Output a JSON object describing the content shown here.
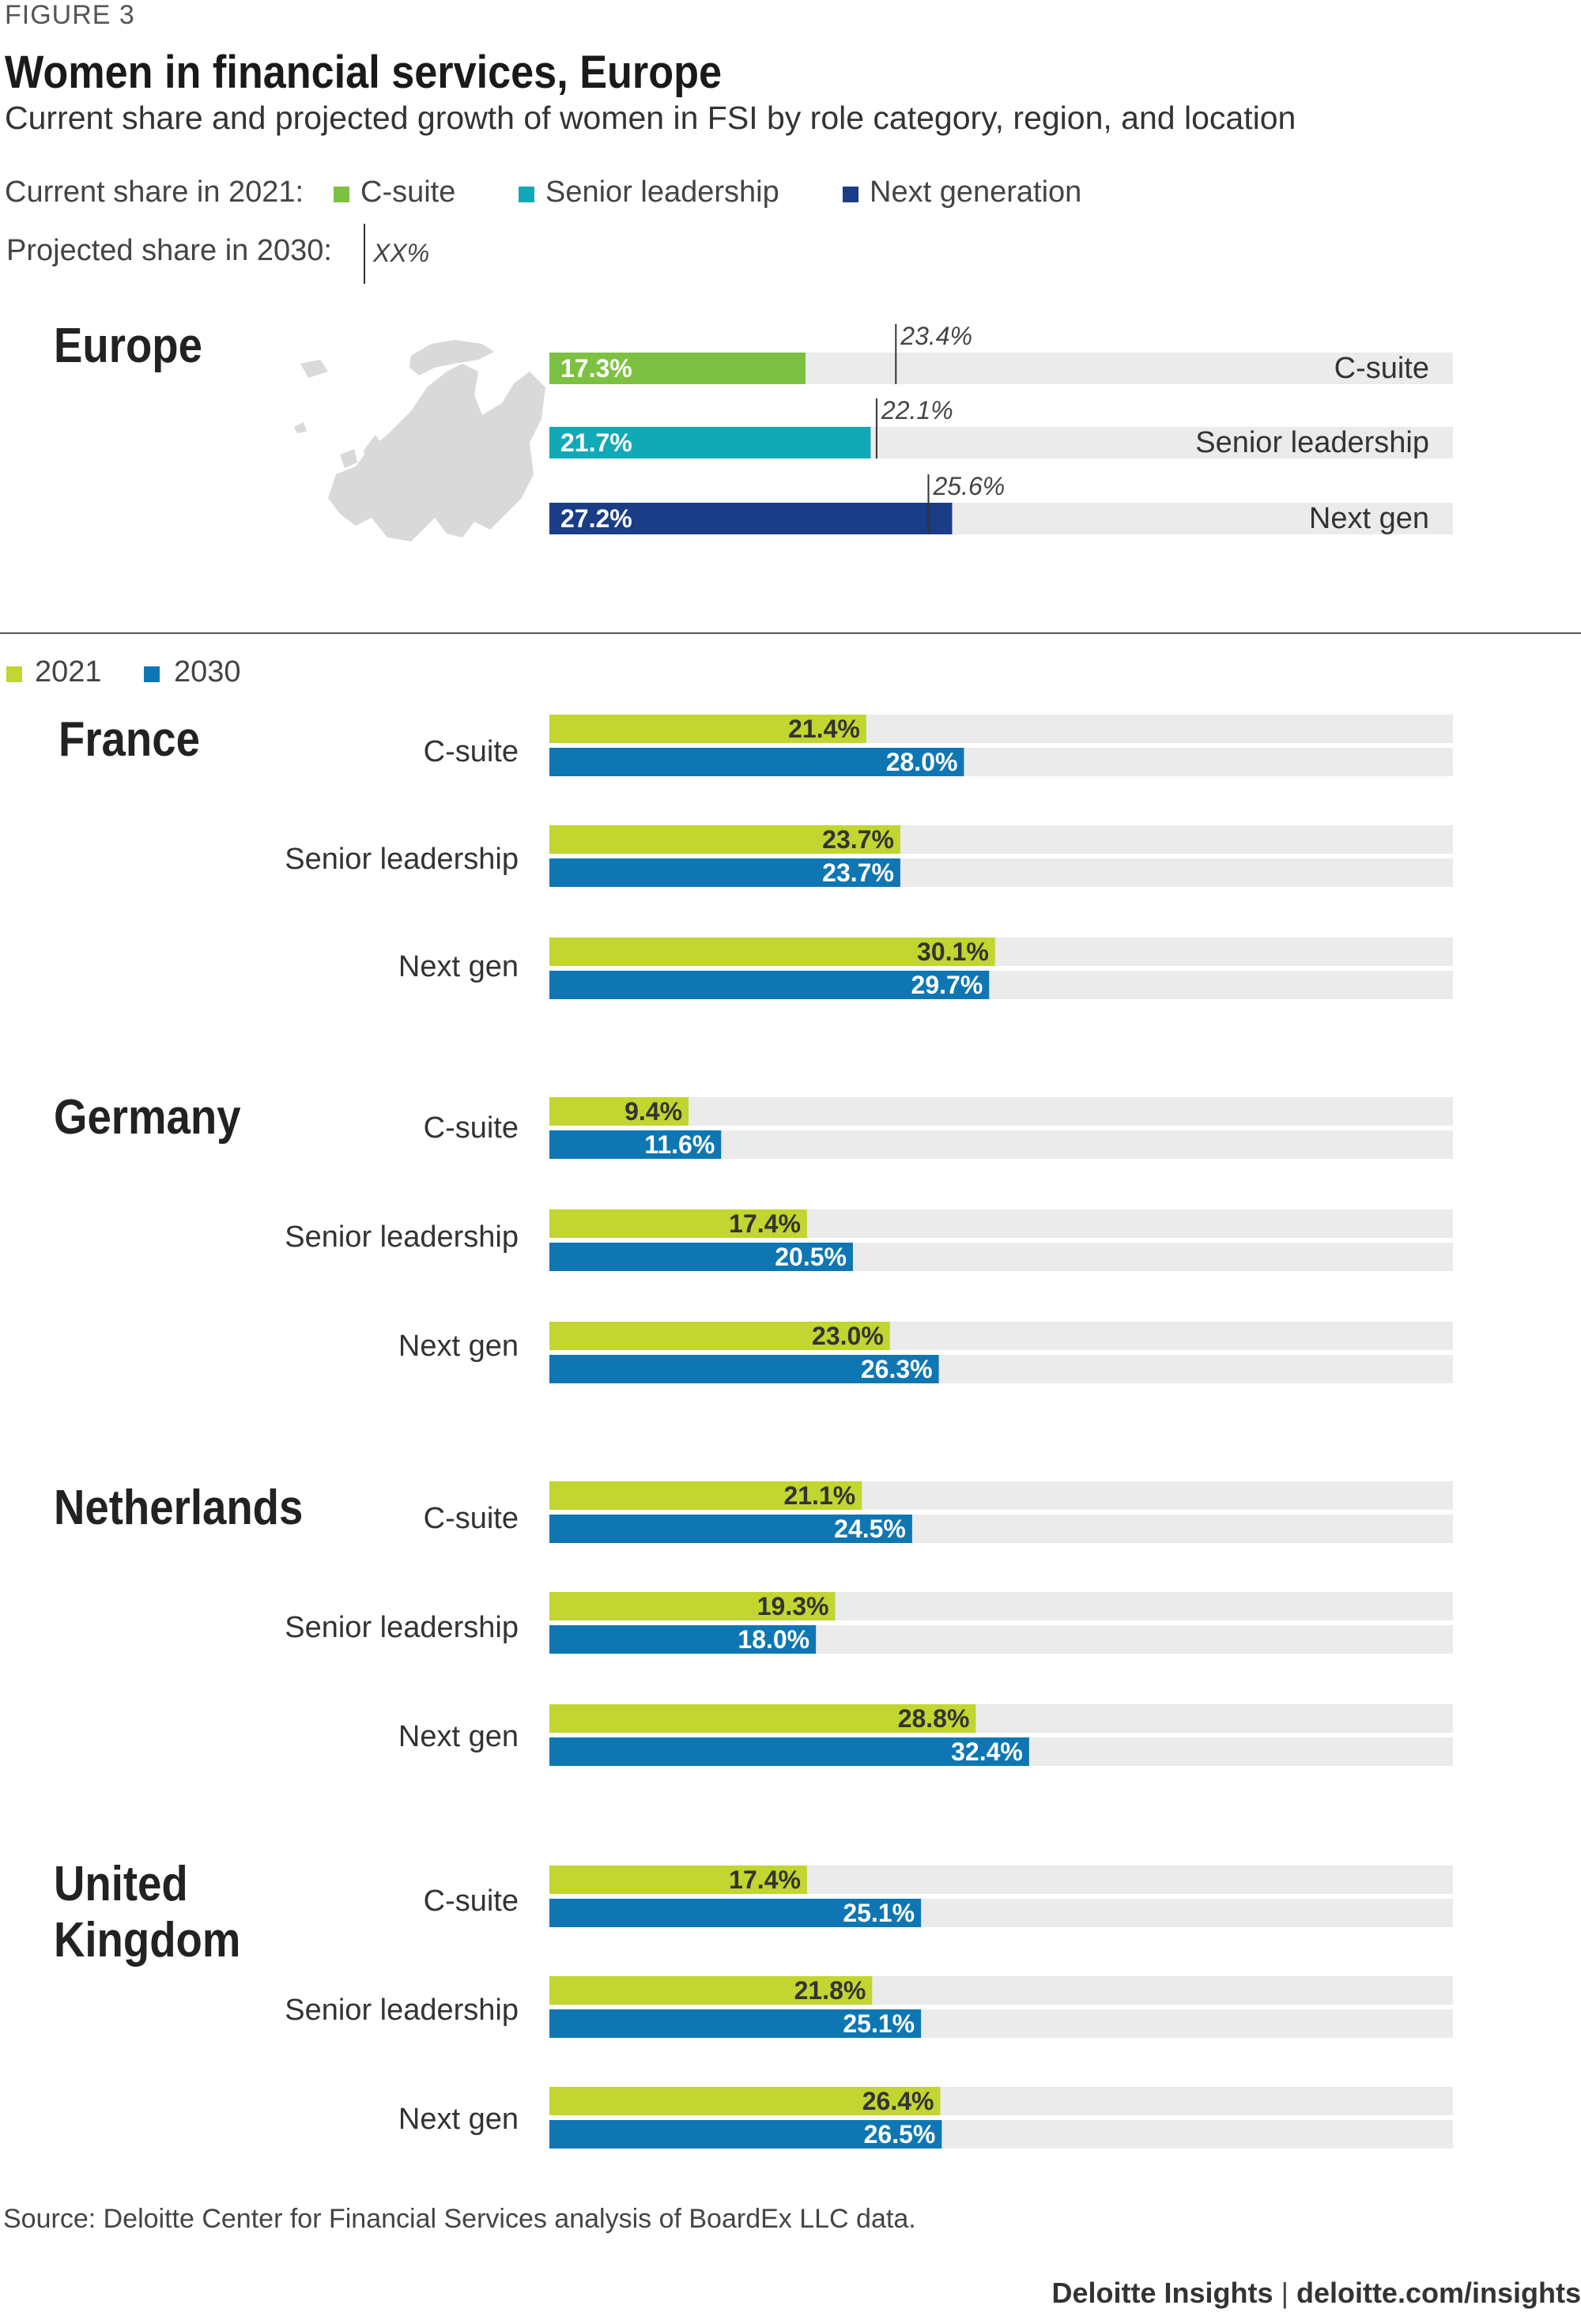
{
  "figure_label": "FIGURE 3",
  "title": "Women in financial services, Europe",
  "subtitle": "Current share and projected growth of women in FSI by role category, region, and location",
  "legend_top": {
    "current_label": "Current share in 2021:",
    "projected_label": "Projected share in 2030:",
    "projected_marker": "XX%",
    "items": [
      {
        "label": "C-suite",
        "color": "#7DC142"
      },
      {
        "label": "Senior leadership",
        "color": "#12A9B7"
      },
      {
        "label": "Next generation",
        "color": "#1B3C86"
      }
    ]
  },
  "legend_countries": {
    "items": [
      {
        "label": "2021",
        "color": "#C2D530"
      },
      {
        "label": "2030",
        "color": "#0E77B3"
      }
    ]
  },
  "source": "Source: Deloitte Center for Financial Services analysis of BoardEx LLC data.",
  "footer": {
    "brand": "Deloitte Insights",
    "separator": "|",
    "url": "deloitte.com/insights"
  },
  "chart_data": [
    {
      "type": "bar",
      "region": "Europe",
      "categories": [
        "C-suite",
        "Senior leadership",
        "Next gen"
      ],
      "current_2021": [
        17.3,
        21.7,
        27.2
      ],
      "current_labels": [
        "17.3%",
        "21.7%",
        "27.2%"
      ],
      "projected_2030": [
        23.4,
        22.1,
        25.6
      ],
      "projected_labels": [
        "23.4%",
        "22.1%",
        "25.6%"
      ],
      "colors": [
        "#7DC142",
        "#12A9B7",
        "#1B3C86"
      ],
      "xlim": [
        0,
        100
      ]
    },
    {
      "type": "bar",
      "region": "France",
      "categories": [
        "C-suite",
        "Senior leadership",
        "Next gen"
      ],
      "series": [
        {
          "name": "2021",
          "values": [
            21.4,
            23.7,
            30.1
          ],
          "labels": [
            "21.4%",
            "23.7%",
            "30.1%"
          ]
        },
        {
          "name": "2030",
          "values": [
            28.0,
            23.7,
            29.7
          ],
          "labels": [
            "28.0%",
            "23.7%",
            "29.7%"
          ]
        }
      ],
      "xlim": [
        0,
        100
      ]
    },
    {
      "type": "bar",
      "region": "Germany",
      "categories": [
        "C-suite",
        "Senior leadership",
        "Next gen"
      ],
      "series": [
        {
          "name": "2021",
          "values": [
            9.4,
            17.4,
            23.0
          ],
          "labels": [
            "9.4%",
            "17.4%",
            "23.0%"
          ]
        },
        {
          "name": "2030",
          "values": [
            11.6,
            20.5,
            26.3
          ],
          "labels": [
            "11.6%",
            "20.5%",
            "26.3%"
          ]
        }
      ],
      "xlim": [
        0,
        100
      ]
    },
    {
      "type": "bar",
      "region": "Netherlands",
      "categories": [
        "C-suite",
        "Senior leadership",
        "Next gen"
      ],
      "series": [
        {
          "name": "2021",
          "values": [
            21.1,
            19.3,
            28.8
          ],
          "labels": [
            "21.1%",
            "19.3%",
            "28.8%"
          ]
        },
        {
          "name": "2030",
          "values": [
            24.5,
            18.0,
            32.4
          ],
          "labels": [
            "24.5%",
            "18.0%",
            "32.4%"
          ]
        }
      ],
      "xlim": [
        0,
        100
      ]
    },
    {
      "type": "bar",
      "region": "United Kingdom",
      "region_lines": [
        "United",
        "Kingdom"
      ],
      "categories": [
        "C-suite",
        "Senior leadership",
        "Next gen"
      ],
      "series": [
        {
          "name": "2021",
          "values": [
            17.4,
            21.8,
            26.4
          ],
          "labels": [
            "17.4%",
            "21.8%",
            "26.4%"
          ]
        },
        {
          "name": "2030",
          "values": [
            25.1,
            25.1,
            26.5
          ],
          "labels": [
            "25.1%",
            "25.1%",
            "26.5%"
          ]
        }
      ],
      "xlim": [
        0,
        100
      ]
    }
  ]
}
